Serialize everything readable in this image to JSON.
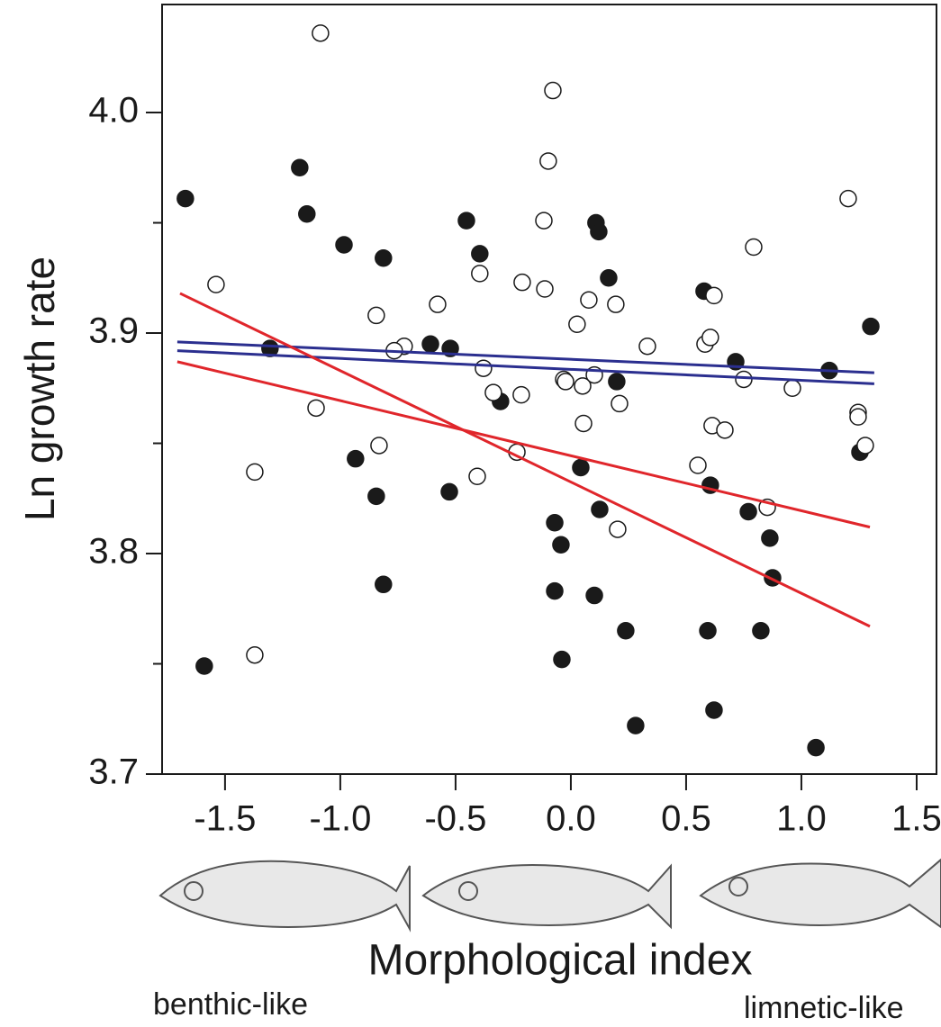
{
  "chart_data": {
    "type": "scatter",
    "ylabel": "Ln growth rate",
    "xlabel": "Morphological index",
    "annotations": [
      "benthic-like",
      "limnetic-like"
    ],
    "xlim": [
      -1.773,
      1.586
    ],
    "ylim": [
      3.7,
      4.049
    ],
    "xticks": [
      -1.5,
      {
        "value": -1,
        "label": "-1.0"
      },
      -0.5,
      {
        "value": 0,
        "label": "0.0"
      },
      0.5,
      {
        "value": 1,
        "label": "1.0"
      },
      1.5
    ],
    "yticks": [
      3.7,
      3.8,
      3.9,
      {
        "value": 4,
        "label": "4.0"
      }
    ],
    "yminor": [
      3.75,
      3.85,
      3.95
    ],
    "series": [
      {
        "marker": "filled",
        "color": "#1a1a1a",
        "x": [
          -1.672,
          -1.59,
          -1.176,
          -1.145,
          -0.984,
          -0.813,
          -1.305,
          -0.934,
          -0.844,
          -0.813,
          -0.609,
          -0.523,
          -0.527,
          -0.453,
          -0.395,
          -0.305,
          -0.07,
          -0.043,
          -0.07,
          -0.039,
          0.043,
          0.109,
          0.121,
          0.164,
          0.102,
          0.125,
          0.199,
          0.238,
          0.281,
          0.578,
          0.605,
          0.594,
          0.621,
          0.715,
          0.77,
          0.824,
          0.863,
          0.875,
          1.063,
          1.121,
          1.254,
          1.301
        ],
        "values": [
          3.961,
          3.749,
          3.975,
          3.954,
          3.94,
          3.934,
          3.893,
          3.843,
          3.826,
          3.786,
          3.895,
          3.893,
          3.828,
          3.951,
          3.936,
          3.869,
          3.814,
          3.804,
          3.783,
          3.752,
          3.839,
          3.95,
          3.946,
          3.925,
          3.781,
          3.82,
          3.878,
          3.765,
          3.722,
          3.919,
          3.831,
          3.765,
          3.729,
          3.887,
          3.819,
          3.765,
          3.807,
          3.789,
          3.712,
          3.883,
          3.846,
          3.903
        ]
      },
      {
        "marker": "open",
        "color": "#1a1a1a",
        "x": [
          -1.086,
          -0.078,
          -0.098,
          -1.539,
          -1.371,
          -1.105,
          -0.844,
          -0.832,
          -1.371,
          -0.723,
          -0.766,
          -0.578,
          -0.395,
          -0.379,
          -0.406,
          -0.336,
          -0.234,
          -0.215,
          -0.211,
          -0.117,
          -0.113,
          -0.031,
          -0.023,
          0.027,
          0.055,
          0.051,
          0.078,
          0.102,
          0.195,
          0.211,
          0.203,
          0.332,
          0.551,
          0.582,
          0.605,
          0.621,
          0.613,
          0.668,
          0.75,
          0.793,
          0.852,
          0.961,
          1.203,
          1.246,
          1.246,
          1.277
        ],
        "values": [
          4.036,
          4.01,
          3.978,
          3.922,
          3.837,
          3.866,
          3.908,
          3.849,
          3.754,
          3.894,
          3.892,
          3.913,
          3.927,
          3.884,
          3.835,
          3.873,
          3.846,
          3.872,
          3.923,
          3.951,
          3.92,
          3.879,
          3.878,
          3.904,
          3.859,
          3.876,
          3.915,
          3.881,
          3.913,
          3.868,
          3.811,
          3.894,
          3.84,
          3.895,
          3.898,
          3.917,
          3.858,
          3.856,
          3.879,
          3.939,
          3.821,
          3.875,
          3.961,
          3.864,
          3.862,
          3.849
        ]
      }
    ],
    "lines": [
      {
        "color": "#2b2f8f",
        "x": [
          -1.707,
          1.316
        ],
        "y": [
          3.896,
          3.882
        ]
      },
      {
        "color": "#2b2f8f",
        "x": [
          -1.707,
          1.316
        ],
        "y": [
          3.892,
          3.877
        ]
      },
      {
        "color": "#e0262b",
        "x": [
          -1.695,
          1.297
        ],
        "y": [
          3.918,
          3.767
        ]
      },
      {
        "color": "#e0262b",
        "x": [
          -1.707,
          1.297
        ],
        "y": [
          3.887,
          3.812
        ]
      }
    ]
  }
}
